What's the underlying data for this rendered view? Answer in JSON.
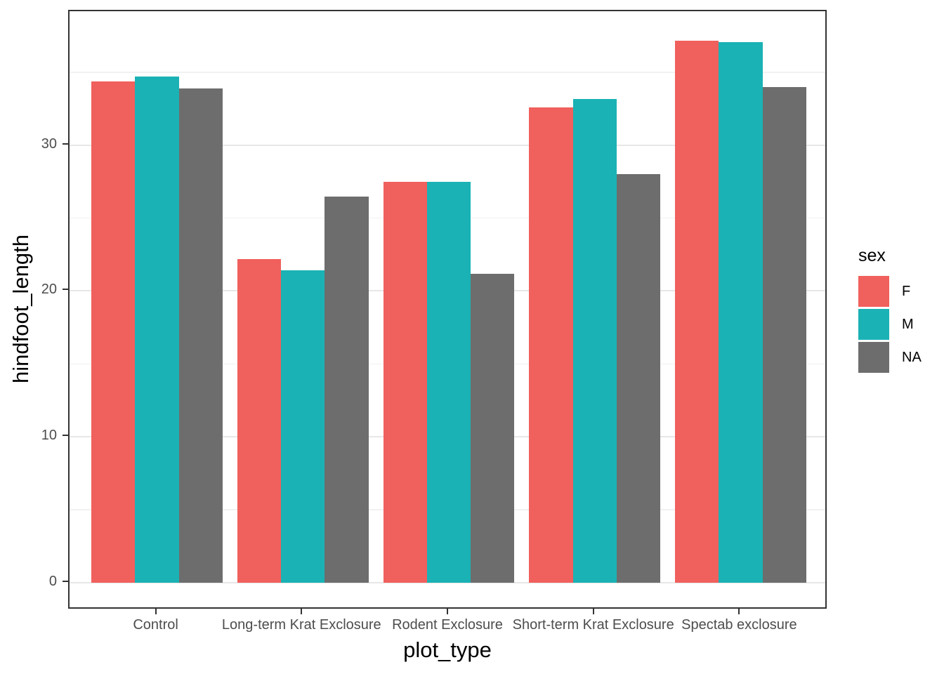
{
  "chart_data": {
    "type": "bar",
    "mode": "grouped-dodge",
    "title": "",
    "xlabel": "plot_type",
    "ylabel": "hindfoot_length",
    "categories": [
      "Control",
      "Long-term Krat Exclosure",
      "Rodent Exclosure",
      "Short-term Krat Exclosure",
      "Spectab exclosure"
    ],
    "series": [
      {
        "name": "F",
        "color": "#F0605D",
        "values": [
          34.4,
          22.2,
          27.5,
          32.6,
          37.2
        ]
      },
      {
        "name": "M",
        "color": "#1AB2B5",
        "values": [
          34.7,
          21.4,
          27.5,
          33.2,
          37.1
        ]
      },
      {
        "name": "NA",
        "color": "#6D6D6D",
        "values": [
          33.9,
          26.5,
          21.2,
          28.0,
          34.0
        ]
      }
    ],
    "legend": {
      "title": "sex",
      "position": "right",
      "entries": [
        "F",
        "M",
        "NA"
      ]
    },
    "y_axis": {
      "ticks": [
        0,
        10,
        20,
        30
      ],
      "tick_labels": [
        "0",
        "10",
        "20",
        "30"
      ],
      "minor_ticks": [
        5,
        15,
        25,
        35
      ],
      "lim": [
        -1.9,
        39.2
      ]
    },
    "grid": "horizontal-major-and-minor",
    "panel_border": "#333333",
    "background": "#FFFFFF"
  }
}
